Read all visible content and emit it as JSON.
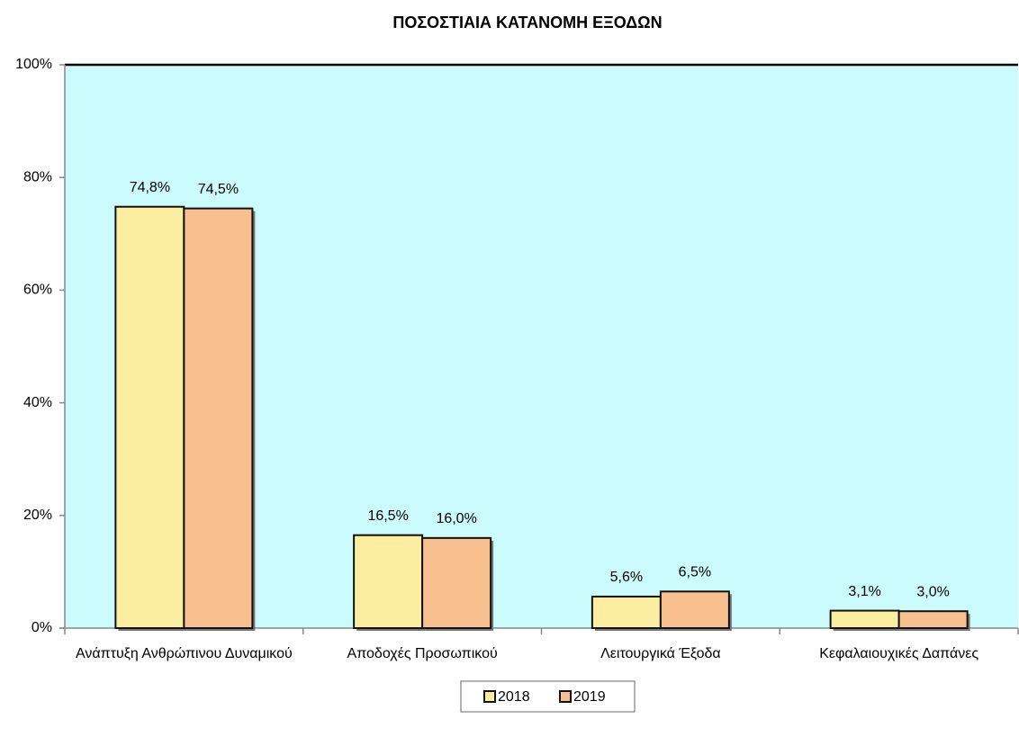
{
  "chart_data": {
    "type": "bar",
    "title": "ΠΟΣΟΣΤΙΑΙΑ ΚΑΤΑΝΟΜΗ ΕΞΟΔΩΝ",
    "categories": [
      "Ανάπτυξη Ανθρώπινου Δυναμικού",
      "Αποδοχές Προσωπικού",
      "Λειτουργικά Έξοδα",
      "Κεφαλαιουχικές Δαπάνες"
    ],
    "series": [
      {
        "name": "2018",
        "color": "#fbeea0",
        "values": [
          74.8,
          16.5,
          5.6,
          3.1
        ],
        "value_labels": [
          "74,8%",
          "16,5%",
          "5,6%",
          "3,1%"
        ]
      },
      {
        "name": "2019",
        "color": "#f8c08e",
        "values": [
          74.5,
          16.0,
          6.5,
          3.0
        ],
        "value_labels": [
          "74,5%",
          "16,0%",
          "6,5%",
          "3,0%"
        ]
      }
    ],
    "ylim": [
      0,
      100
    ],
    "yticks": [
      {
        "value": 0,
        "label": "0%"
      },
      {
        "value": 20,
        "label": "20%"
      },
      {
        "value": 40,
        "label": "40%"
      },
      {
        "value": 60,
        "label": "60%"
      },
      {
        "value": 80,
        "label": "80%"
      },
      {
        "value": 100,
        "label": "100%"
      }
    ],
    "plot_background": "#cbfbfd",
    "legend": "bottom"
  }
}
